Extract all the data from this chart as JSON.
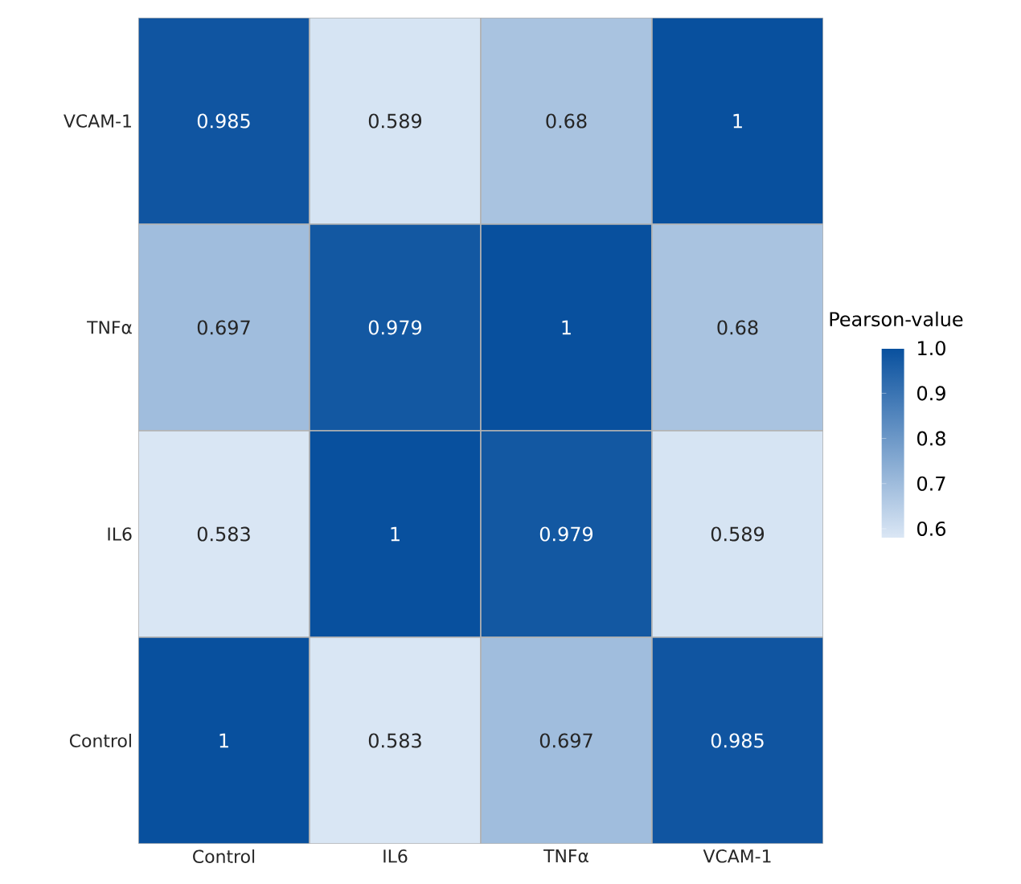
{
  "chart_data": {
    "type": "heatmap",
    "categories": [
      "Control",
      "IL6",
      "TNFα",
      "VCAM-1"
    ],
    "y_categories": [
      "VCAM-1",
      "TNFα",
      "IL6",
      "Control"
    ],
    "cells": [
      [
        0.985,
        0.589,
        0.68,
        1
      ],
      [
        0.697,
        0.979,
        1,
        0.68
      ],
      [
        0.583,
        1,
        0.979,
        0.589
      ],
      [
        1,
        0.583,
        0.697,
        0.985
      ]
    ],
    "cell_labels": [
      [
        "0.985",
        "0.589",
        "0.68",
        "1"
      ],
      [
        "0.697",
        "0.979",
        "1",
        "0.68"
      ],
      [
        "0.583",
        "1",
        "0.979",
        "0.589"
      ],
      [
        "1",
        "0.583",
        "0.697",
        "0.985"
      ]
    ],
    "clabel": "Pearson-value",
    "clim": [
      0.58,
      1.0
    ],
    "cticks": [
      {
        "value": 0.6,
        "label": "0.6"
      },
      {
        "value": 0.7,
        "label": "0.7"
      },
      {
        "value": 0.8,
        "label": "0.8"
      },
      {
        "value": 0.9,
        "label": "0.9"
      },
      {
        "value": 1.0,
        "label": "1.0"
      }
    ]
  }
}
